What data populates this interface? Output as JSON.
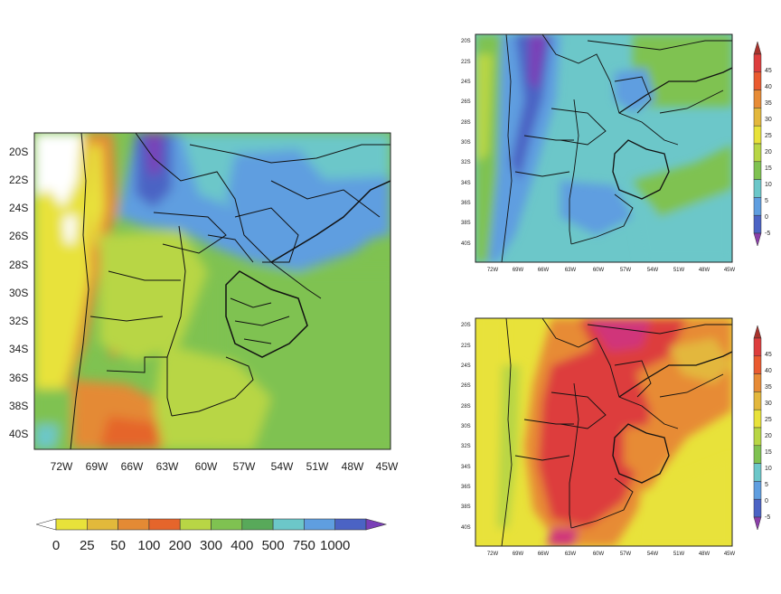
{
  "maps": [
    {
      "id": "left",
      "lat_ticks": [
        "20S",
        "22S",
        "24S",
        "26S",
        "28S",
        "30S",
        "32S",
        "34S",
        "36S",
        "38S",
        "40S"
      ],
      "lon_ticks": [
        "72W",
        "69W",
        "66W",
        "63W",
        "60W",
        "57W",
        "54W",
        "51W",
        "48W",
        "45W"
      ],
      "colorbar": {
        "labels": [
          "0",
          "25",
          "50",
          "100",
          "200",
          "300",
          "400",
          "500",
          "750",
          "1000"
        ],
        "colors": [
          "#ffffff",
          "#e8e23a",
          "#e2b93b",
          "#e48a34",
          "#e5652b",
          "#b8d645",
          "#7fc251",
          "#58a95a",
          "#6cc7c9",
          "#5f9ee0",
          "#4b63c4",
          "#7a3fb7"
        ]
      }
    },
    {
      "id": "top-right",
      "lat_ticks": [
        "20S",
        "22S",
        "24S",
        "26S",
        "28S",
        "30S",
        "32S",
        "34S",
        "36S",
        "38S",
        "40S"
      ],
      "lon_ticks": [
        "72W",
        "69W",
        "66W",
        "63W",
        "60W",
        "57W",
        "54W",
        "51W",
        "48W",
        "45W"
      ],
      "colorbar": {
        "labels": [
          "45",
          "40",
          "35",
          "30",
          "25",
          "20",
          "15",
          "10",
          "5",
          "0",
          "-5"
        ],
        "colors": [
          "#a8322c",
          "#dd3d3d",
          "#ea5a2f",
          "#e78b35",
          "#e3b73c",
          "#e8e23a",
          "#b8d645",
          "#7fc251",
          "#6cc7c9",
          "#5f9ee0",
          "#4b63c4",
          "#8a3ea8"
        ]
      }
    },
    {
      "id": "bottom-right",
      "lat_ticks": [
        "20S",
        "22S",
        "24S",
        "26S",
        "28S",
        "30S",
        "32S",
        "34S",
        "36S",
        "38S",
        "40S"
      ],
      "lon_ticks": [
        "72W",
        "69W",
        "66W",
        "63W",
        "60W",
        "57W",
        "54W",
        "51W",
        "48W",
        "45W"
      ],
      "colorbar": {
        "labels": [
          "45",
          "40",
          "35",
          "30",
          "25",
          "20",
          "15",
          "10",
          "5",
          "0",
          "-5"
        ],
        "colors": [
          "#a8322c",
          "#dd3d3d",
          "#ea5a2f",
          "#e78b35",
          "#e3b73c",
          "#e8e23a",
          "#b8d645",
          "#7fc251",
          "#6cc7c9",
          "#5f9ee0",
          "#4b63c4",
          "#8a3ea8"
        ]
      }
    }
  ]
}
